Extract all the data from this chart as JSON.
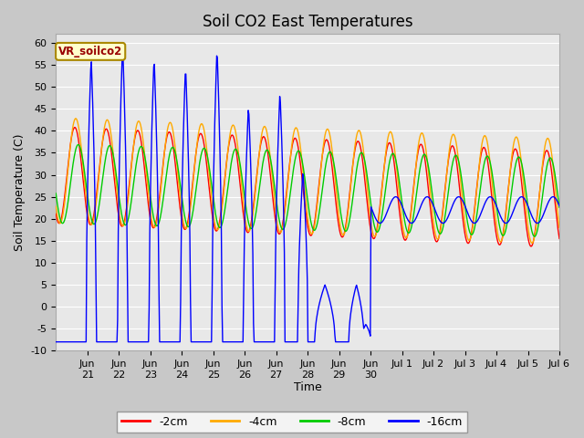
{
  "title": "Soil CO2 East Temperatures",
  "xlabel": "Time",
  "ylabel": "Soil Temperature (C)",
  "ylim": [
    -10,
    62
  ],
  "yticks": [
    -10,
    -5,
    0,
    5,
    10,
    15,
    20,
    25,
    30,
    35,
    40,
    45,
    50,
    55,
    60
  ],
  "legend_label": "VR_soilco2",
  "series_labels": [
    "-2cm",
    "-4cm",
    "-8cm",
    "-16cm"
  ],
  "series_colors": [
    "#ff0000",
    "#ffaa00",
    "#00cc00",
    "#0000ff"
  ],
  "fig_bg_color": "#c8c8c8",
  "plot_bg_color": "#e8e8e8",
  "grid_color": "#ffffff",
  "title_fontsize": 12,
  "axis_fontsize": 9,
  "tick_fontsize": 8,
  "xtick_labels": [
    "Jun\n21",
    "Jun\n22",
    "Jun\n23",
    "Jun\n24",
    "Jun\n25",
    "Jun\n26",
    "Jun\n27",
    "Jun\n28",
    "Jun\n29",
    "Jun\n30",
    "Jul 1",
    "Jul 2",
    "Jul 3",
    "Jul 4",
    "Jul 5",
    "Jul 6"
  ],
  "xtick_positions": [
    1,
    2,
    3,
    4,
    5,
    6,
    7,
    8,
    9,
    10,
    11,
    12,
    13,
    14,
    15,
    16
  ],
  "xlim": [
    0,
    16
  ]
}
